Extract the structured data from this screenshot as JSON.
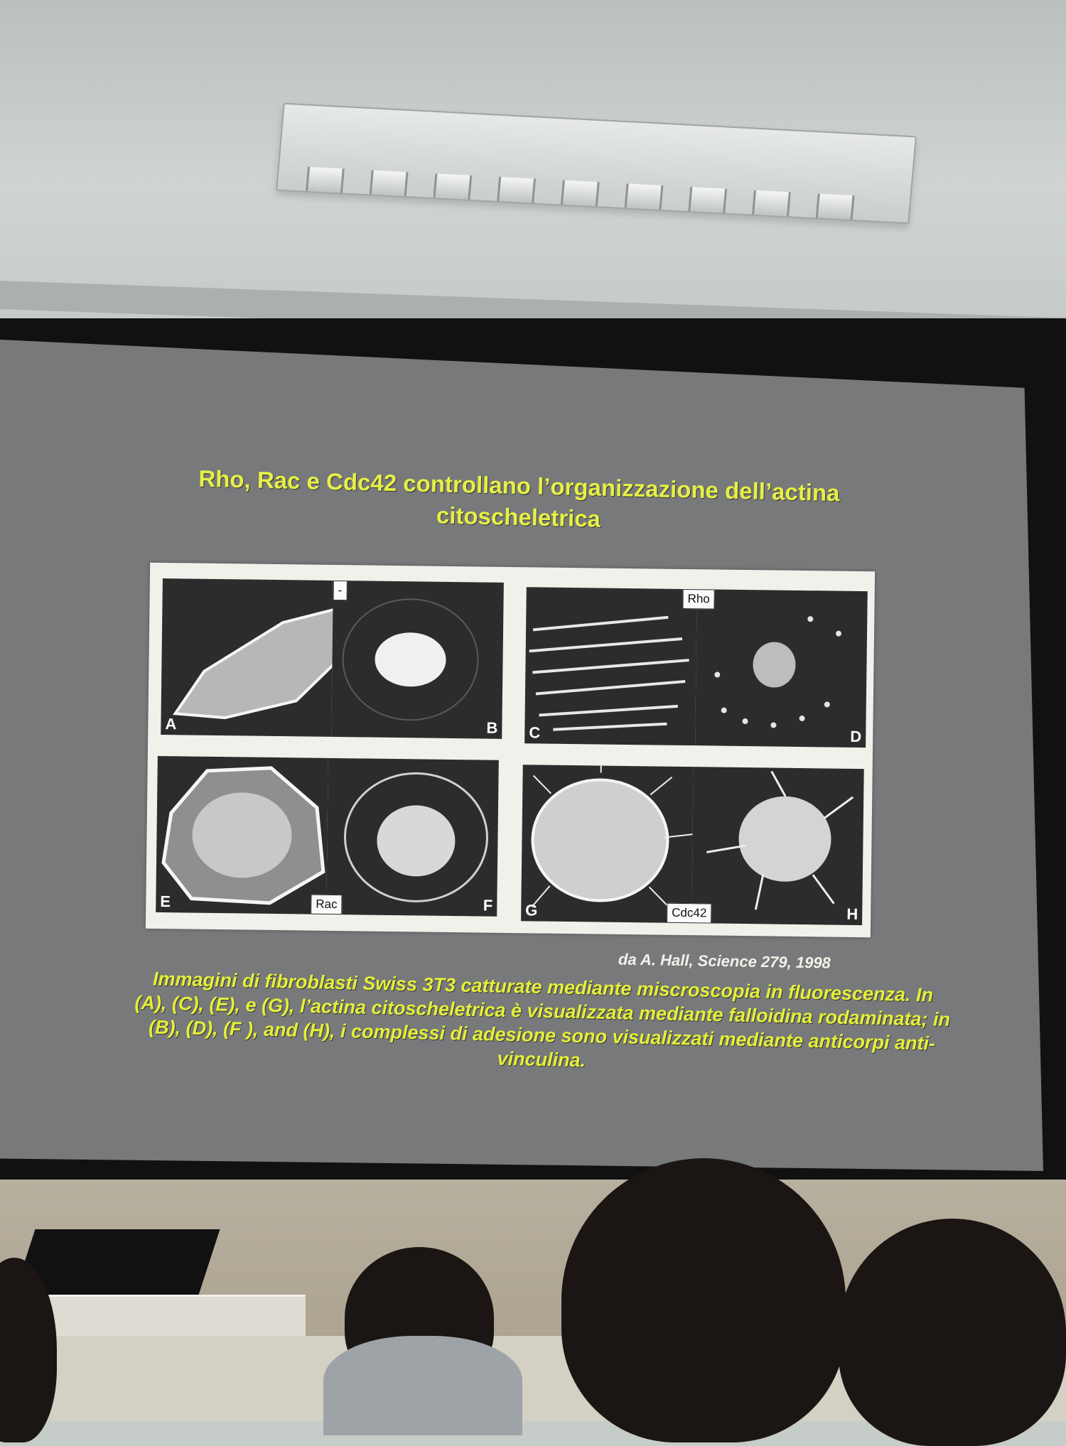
{
  "slide": {
    "title": "Rho, Rac e Cdc42 controllano l’organizzazione dell’actina citoscheletrica",
    "citation": "da A. Hall, Science 279, 1998",
    "caption": "Immagini di fibroblasti Swiss 3T3 catturate mediante miscroscopia in fluorescenza. In (A), (C), (E), e (G), l’actina citoscheletrica è visualizzata mediante falloidina rodaminata; in (B), (D), (F ), and (H), i complessi di adesione sono visualizzati mediante anticorpi anti-vinculina."
  },
  "figure": {
    "tags": {
      "control": "-",
      "rho": "Rho",
      "rac": "Rac",
      "cdc42": "Cdc42"
    },
    "panels": [
      "A",
      "B",
      "C",
      "D",
      "E",
      "F",
      "G",
      "H"
    ]
  },
  "colors": {
    "slide_text": "#e6f046",
    "slide_background": "#77797a"
  }
}
